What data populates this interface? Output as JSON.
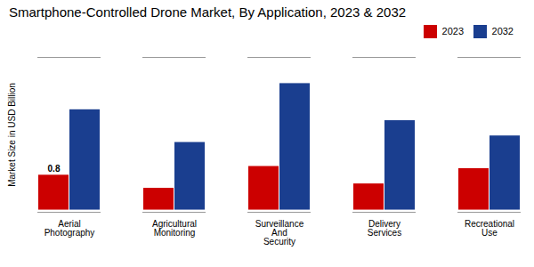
{
  "chart_data": {
    "type": "bar",
    "title": "Smartphone-Controlled Drone Market, By Application, 2023 & 2032",
    "ylabel": "Market Size in USD Billion",
    "categories": [
      "Aerial\nPhotography",
      "Agricultural\nMonitoring",
      "Surveillance\nAnd\nSecurity",
      "Delivery\nServices",
      "Recreational\nUse"
    ],
    "series": [
      {
        "name": "2023",
        "color": "#cc0000",
        "values": [
          0.8,
          0.5,
          1.0,
          0.6,
          0.95
        ]
      },
      {
        "name": "2032",
        "color": "#1a3e8f",
        "values": [
          2.3,
          1.55,
          2.9,
          2.05,
          1.7
        ]
      }
    ],
    "annotations": [
      {
        "text": "0.8",
        "category": "Aerial\nPhotography",
        "series": "2023"
      }
    ],
    "ylim": [
      -0.05,
      3.5
    ],
    "yticks": [],
    "tick_labels": "x",
    "grid": false,
    "legend": "upper right"
  }
}
